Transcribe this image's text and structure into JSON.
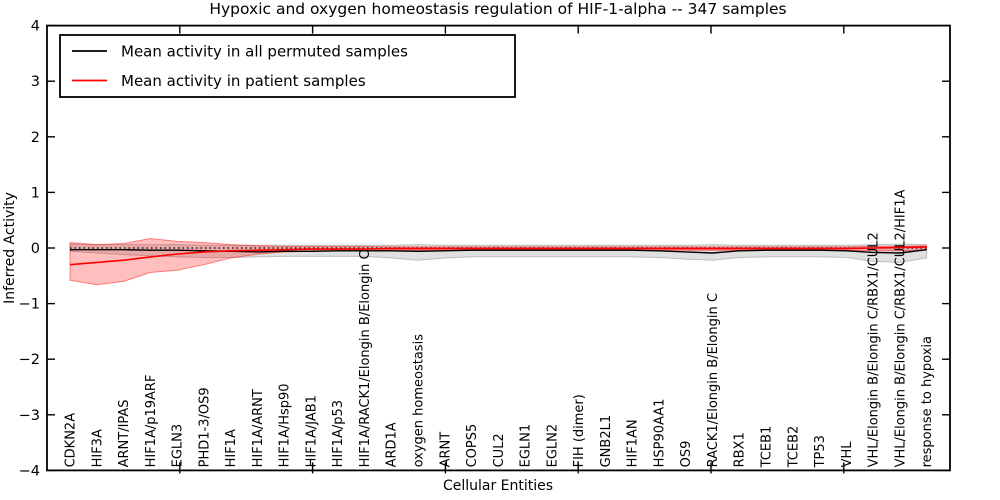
{
  "title": "Hypoxic and oxygen homeostasis regulation of HIF-1-alpha -- 347 samples",
  "legend": {
    "entries": [
      {
        "label": "Mean activity in all permuted samples",
        "color": "#000000"
      },
      {
        "label": "Mean activity in patient samples",
        "color": "#ff0000"
      }
    ]
  },
  "axes": {
    "xlabel": "Cellular Entities",
    "ylabel": "Inferred Activity"
  },
  "chart_data": {
    "type": "line",
    "title": "Hypoxic and oxygen homeostasis regulation of HIF-1-alpha -- 347 samples",
    "xlabel": "Cellular Entities",
    "ylabel": "Inferred Activity",
    "ylim": [
      -4,
      4
    ],
    "yticks": [
      4,
      3,
      2,
      1,
      0,
      -1,
      -2,
      -3,
      -4
    ],
    "grid": false,
    "legend_position": "upper left",
    "zero_line": {
      "style": "dotted",
      "color": "#000000",
      "y": 0
    },
    "categories": [
      "CDKN2A",
      "HIF3A",
      "ARNT/IPAS",
      "HIF1A/p19ARF",
      "EGLN3",
      "PHD1-3/OS9",
      "HIF1A",
      "HIF1A/ARNT",
      "HIF1A/Hsp90",
      "HIF1A/JAB1",
      "HIF1A/p53",
      "HIF1A/RACK1/Elongin B/Elongin C",
      "ARD1A",
      "oxygen homeostasis",
      "ARNT",
      "COPS5",
      "CUL2",
      "EGLN1",
      "EGLN2",
      "FIH (dimer)",
      "GNB2L1",
      "HIF1AN",
      "HSP90AA1",
      "OS9",
      "RACK1/Elongin B/Elongin C",
      "RBX1",
      "TCEB1",
      "TCEB2",
      "TP53",
      "VHL",
      "VHL/Elongin B/Elongin C/RBX1/CUL2",
      "VHL/Elongin B/Elongin C/RBX1/CUL2/HIF1A",
      "response to hypoxia"
    ],
    "series": [
      {
        "name": "Mean activity in all permuted samples",
        "color": "#000000",
        "values": [
          -0.03,
          -0.03,
          -0.03,
          -0.04,
          -0.04,
          -0.05,
          -0.06,
          -0.07,
          -0.06,
          -0.06,
          -0.05,
          -0.05,
          -0.05,
          -0.06,
          -0.05,
          -0.04,
          -0.04,
          -0.04,
          -0.04,
          -0.04,
          -0.04,
          -0.04,
          -0.05,
          -0.07,
          -0.09,
          -0.05,
          -0.04,
          -0.04,
          -0.04,
          -0.05,
          -0.08,
          -0.09,
          -0.03
        ]
      },
      {
        "name": "Mean activity in patient samples",
        "color": "#ff0000",
        "values": [
          -0.3,
          -0.26,
          -0.22,
          -0.16,
          -0.11,
          -0.07,
          -0.05,
          -0.04,
          -0.03,
          -0.02,
          -0.02,
          -0.02,
          -0.01,
          -0.01,
          -0.01,
          -0.01,
          -0.01,
          -0.01,
          -0.01,
          -0.01,
          -0.01,
          -0.01,
          -0.01,
          -0.01,
          -0.01,
          -0.01,
          -0.01,
          -0.01,
          -0.01,
          -0.01,
          0.0,
          0.01,
          0.02
        ]
      }
    ],
    "bands": [
      {
        "name": "permuted-samples-std-band",
        "fill": "rgba(130,130,130,0.25)",
        "edge": "rgba(130,130,130,0.45)",
        "upper": [
          0.07,
          0.06,
          0.06,
          0.06,
          0.06,
          0.05,
          0.05,
          0.05,
          0.05,
          0.05,
          0.05,
          0.05,
          0.05,
          0.06,
          0.05,
          0.05,
          0.05,
          0.05,
          0.05,
          0.05,
          0.05,
          0.05,
          0.05,
          0.05,
          0.06,
          0.05,
          0.05,
          0.05,
          0.05,
          0.05,
          0.06,
          0.07,
          0.06
        ],
        "lower": [
          -0.06,
          -0.09,
          -0.12,
          -0.14,
          -0.16,
          -0.17,
          -0.17,
          -0.16,
          -0.15,
          -0.15,
          -0.15,
          -0.15,
          -0.18,
          -0.22,
          -0.18,
          -0.16,
          -0.16,
          -0.16,
          -0.16,
          -0.16,
          -0.16,
          -0.16,
          -0.17,
          -0.2,
          -0.22,
          -0.17,
          -0.16,
          -0.16,
          -0.16,
          -0.17,
          -0.24,
          -0.26,
          -0.18
        ]
      },
      {
        "name": "patient-samples-std-band",
        "fill": "rgba(255,0,0,0.25)",
        "edge": "rgba(255,0,0,0.45)",
        "upper": [
          0.1,
          0.06,
          0.08,
          0.17,
          0.12,
          0.1,
          0.06,
          0.04,
          0.03,
          0.03,
          0.03,
          0.03,
          0.02,
          0.02,
          0.02,
          0.02,
          0.02,
          0.02,
          0.02,
          0.02,
          0.02,
          0.02,
          0.02,
          0.02,
          0.02,
          0.02,
          0.02,
          0.02,
          0.02,
          0.02,
          0.03,
          0.03,
          0.04
        ],
        "lower": [
          -0.58,
          -0.66,
          -0.6,
          -0.44,
          -0.4,
          -0.3,
          -0.18,
          -0.11,
          -0.07,
          -0.06,
          -0.05,
          -0.05,
          -0.04,
          -0.04,
          -0.04,
          -0.04,
          -0.04,
          -0.04,
          -0.04,
          -0.04,
          -0.04,
          -0.04,
          -0.04,
          -0.04,
          -0.04,
          -0.04,
          -0.04,
          -0.04,
          -0.04,
          -0.04,
          -0.05,
          -0.05,
          -0.03
        ]
      }
    ]
  }
}
